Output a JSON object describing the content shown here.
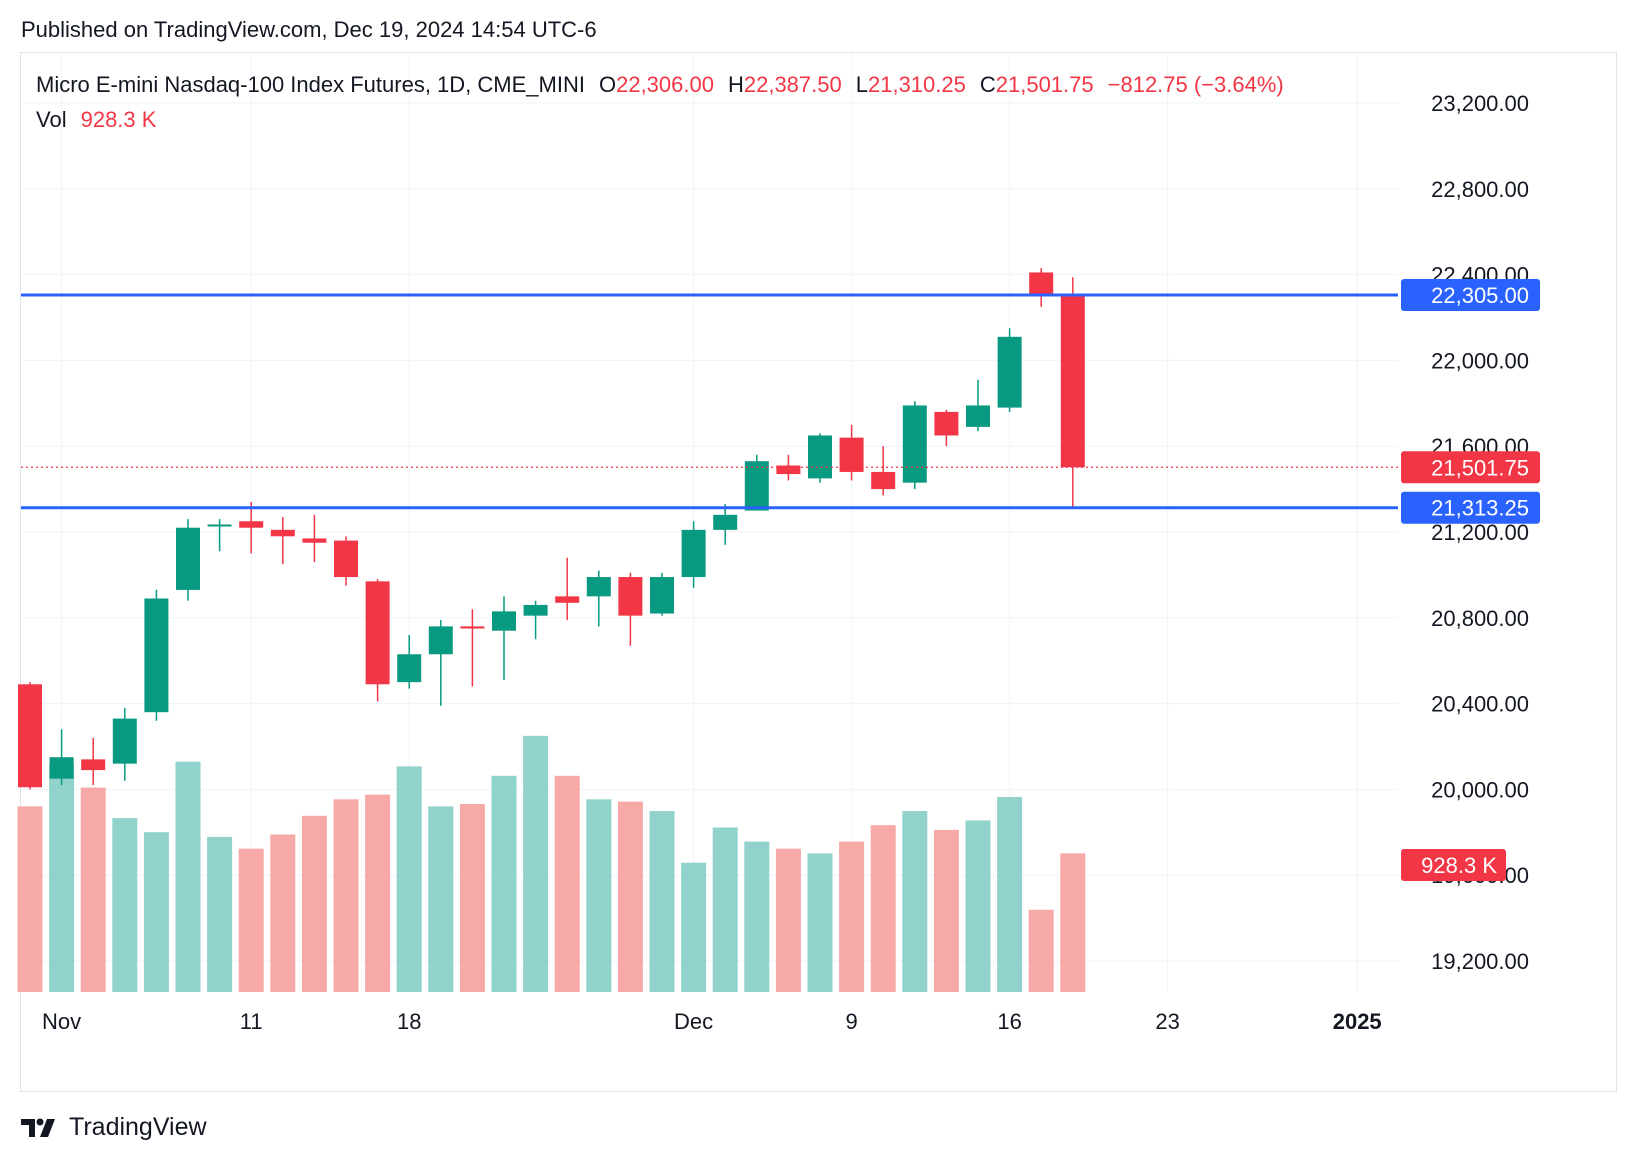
{
  "header": {
    "published": "Published on TradingView.com, Dec 19, 2024 14:54 UTC-6"
  },
  "legend": {
    "symbol": "Micro E-mini Nasdaq-100 Index Futures, 1D, CME_MINI",
    "open_label": "O",
    "open": "22,306.00",
    "high_label": "H",
    "high": "22,387.50",
    "low_label": "L",
    "low": "21,310.25",
    "close_label": "C",
    "close": "21,501.75",
    "change": "−812.75 (−3.64%)",
    "vol_label": "Vol",
    "vol": "928.3 K"
  },
  "colors": {
    "up": "#089981",
    "down": "#f23645",
    "up_volume": "#92d2cc",
    "down_volume": "#f7a9a7",
    "hline": "#2962ff",
    "grid": "#f0f3fa"
  },
  "chart_data": {
    "type": "candlestick",
    "title": "Micro E-mini Nasdaq-100 Index Futures, 1D, CME_MINI",
    "y_ticks": [
      "23,200.00",
      "22,800.00",
      "22,400.00",
      "22,000.00",
      "21,600.00",
      "21,200.00",
      "20,800.00",
      "20,400.00",
      "20,000.00",
      "19,600.00",
      "19,200.00"
    ],
    "x_ticks": [
      {
        "label": "Nov",
        "bar": 1
      },
      {
        "label": "11",
        "bar": 7
      },
      {
        "label": "18",
        "bar": 12
      },
      {
        "label": "Dec",
        "bar": 21
      },
      {
        "label": "9",
        "bar": 26
      },
      {
        "label": "16",
        "bar": 31
      },
      {
        "label": "23",
        "bar": 36
      },
      {
        "label": "2025",
        "bar": 42
      }
    ],
    "series": [
      {
        "date": "Oct 31",
        "o": 20490,
        "h": 20500,
        "l": 20000,
        "c": 20010,
        "v": "down",
        "vol": 0.79
      },
      {
        "date": "Nov 1",
        "o": 20050,
        "h": 20280,
        "l": 20020,
        "c": 20150,
        "v": "up",
        "vol": 0.97
      },
      {
        "date": "Nov 4",
        "o": 20140,
        "h": 20240,
        "l": 20020,
        "c": 20090,
        "v": "down",
        "vol": 0.87
      },
      {
        "date": "Nov 5",
        "o": 20120,
        "h": 20380,
        "l": 20040,
        "c": 20330,
        "v": "up",
        "vol": 0.74
      },
      {
        "date": "Nov 6",
        "o": 20360,
        "h": 20930,
        "l": 20320,
        "c": 20890,
        "v": "up",
        "vol": 0.68
      },
      {
        "date": "Nov 7",
        "o": 20930,
        "h": 21260,
        "l": 20880,
        "c": 21220,
        "v": "up",
        "vol": 0.98
      },
      {
        "date": "Nov 8",
        "o": 21230,
        "h": 21260,
        "l": 21110,
        "c": 21235,
        "v": "up",
        "vol": 0.66
      },
      {
        "date": "Nov 11",
        "o": 21250,
        "h": 21340,
        "l": 21100,
        "c": 21220,
        "v": "down",
        "vol": 0.61
      },
      {
        "date": "Nov 12",
        "o": 21210,
        "h": 21270,
        "l": 21050,
        "c": 21180,
        "v": "down",
        "vol": 0.67
      },
      {
        "date": "Nov 13",
        "o": 21170,
        "h": 21280,
        "l": 21060,
        "c": 21150,
        "v": "down",
        "vol": 0.75
      },
      {
        "date": "Nov 14",
        "o": 21160,
        "h": 21180,
        "l": 20950,
        "c": 20990,
        "v": "down",
        "vol": 0.82
      },
      {
        "date": "Nov 15",
        "o": 20970,
        "h": 20980,
        "l": 20410,
        "c": 20490,
        "v": "down",
        "vol": 0.84
      },
      {
        "date": "Nov 18",
        "o": 20500,
        "h": 20720,
        "l": 20470,
        "c": 20630,
        "v": "up",
        "vol": 0.96
      },
      {
        "date": "Nov 19",
        "o": 20630,
        "h": 20790,
        "l": 20390,
        "c": 20760,
        "v": "up",
        "vol": 0.79
      },
      {
        "date": "Nov 20",
        "o": 20760,
        "h": 20840,
        "l": 20480,
        "c": 20750,
        "v": "down",
        "vol": 0.8
      },
      {
        "date": "Nov 21",
        "o": 20740,
        "h": 20900,
        "l": 20510,
        "c": 20830,
        "v": "up",
        "vol": 0.92
      },
      {
        "date": "Nov 22",
        "o": 20810,
        "h": 20880,
        "l": 20700,
        "c": 20860,
        "v": "up",
        "vol": 1.09
      },
      {
        "date": "Nov 25",
        "o": 20900,
        "h": 21080,
        "l": 20790,
        "c": 20870,
        "v": "down",
        "vol": 0.92
      },
      {
        "date": "Nov 26",
        "o": 20900,
        "h": 21020,
        "l": 20760,
        "c": 20990,
        "v": "up",
        "vol": 0.82
      },
      {
        "date": "Nov 27",
        "o": 20990,
        "h": 21010,
        "l": 20670,
        "c": 20810,
        "v": "down",
        "vol": 0.81
      },
      {
        "date": "Nov 29",
        "o": 20820,
        "h": 21010,
        "l": 20810,
        "c": 20990,
        "v": "up",
        "vol": 0.77
      },
      {
        "date": "Dec 2",
        "o": 20990,
        "h": 21250,
        "l": 20940,
        "c": 21210,
        "v": "up",
        "vol": 0.55
      },
      {
        "date": "Dec 3",
        "o": 21210,
        "h": 21330,
        "l": 21140,
        "c": 21280,
        "v": "up",
        "vol": 0.7
      },
      {
        "date": "Dec 4",
        "o": 21300,
        "h": 21560,
        "l": 21300,
        "c": 21530,
        "v": "up",
        "vol": 0.64
      },
      {
        "date": "Dec 5",
        "o": 21510,
        "h": 21560,
        "l": 21440,
        "c": 21470,
        "v": "down",
        "vol": 0.61
      },
      {
        "date": "Dec 6",
        "o": 21450,
        "h": 21660,
        "l": 21430,
        "c": 21650,
        "v": "up",
        "vol": 0.59
      },
      {
        "date": "Dec 9",
        "o": 21640,
        "h": 21700,
        "l": 21440,
        "c": 21480,
        "v": "down",
        "vol": 0.64
      },
      {
        "date": "Dec 10",
        "o": 21480,
        "h": 21600,
        "l": 21370,
        "c": 21400,
        "v": "down",
        "vol": 0.71
      },
      {
        "date": "Dec 11",
        "o": 21430,
        "h": 21810,
        "l": 21400,
        "c": 21790,
        "v": "up",
        "vol": 0.77
      },
      {
        "date": "Dec 12",
        "o": 21760,
        "h": 21770,
        "l": 21600,
        "c": 21650,
        "v": "down",
        "vol": 0.69
      },
      {
        "date": "Dec 13",
        "o": 21690,
        "h": 21910,
        "l": 21670,
        "c": 21790,
        "v": "up",
        "vol": 0.73
      },
      {
        "date": "Dec 16",
        "o": 21780,
        "h": 22150,
        "l": 21760,
        "c": 22110,
        "v": "up",
        "vol": 0.83
      },
      {
        "date": "Dec 17",
        "o": 22410,
        "h": 22430,
        "l": 22250,
        "c": 22310,
        "v": "down",
        "vol": 0.35
      },
      {
        "date": "Dec 18",
        "o": 22306,
        "h": 22387.5,
        "l": 21310.25,
        "c": 21501.75,
        "v": "down",
        "vol": 0.59
      }
    ],
    "horizontal_lines": [
      {
        "value": 22305.0,
        "label": "22,305.00"
      },
      {
        "value": 21313.25,
        "label": "21,313.25"
      }
    ],
    "last_price": {
      "value": 21501.75,
      "label": "21,501.75"
    },
    "volume_label": "928.3 K"
  },
  "footer": {
    "brand": "TradingView"
  }
}
